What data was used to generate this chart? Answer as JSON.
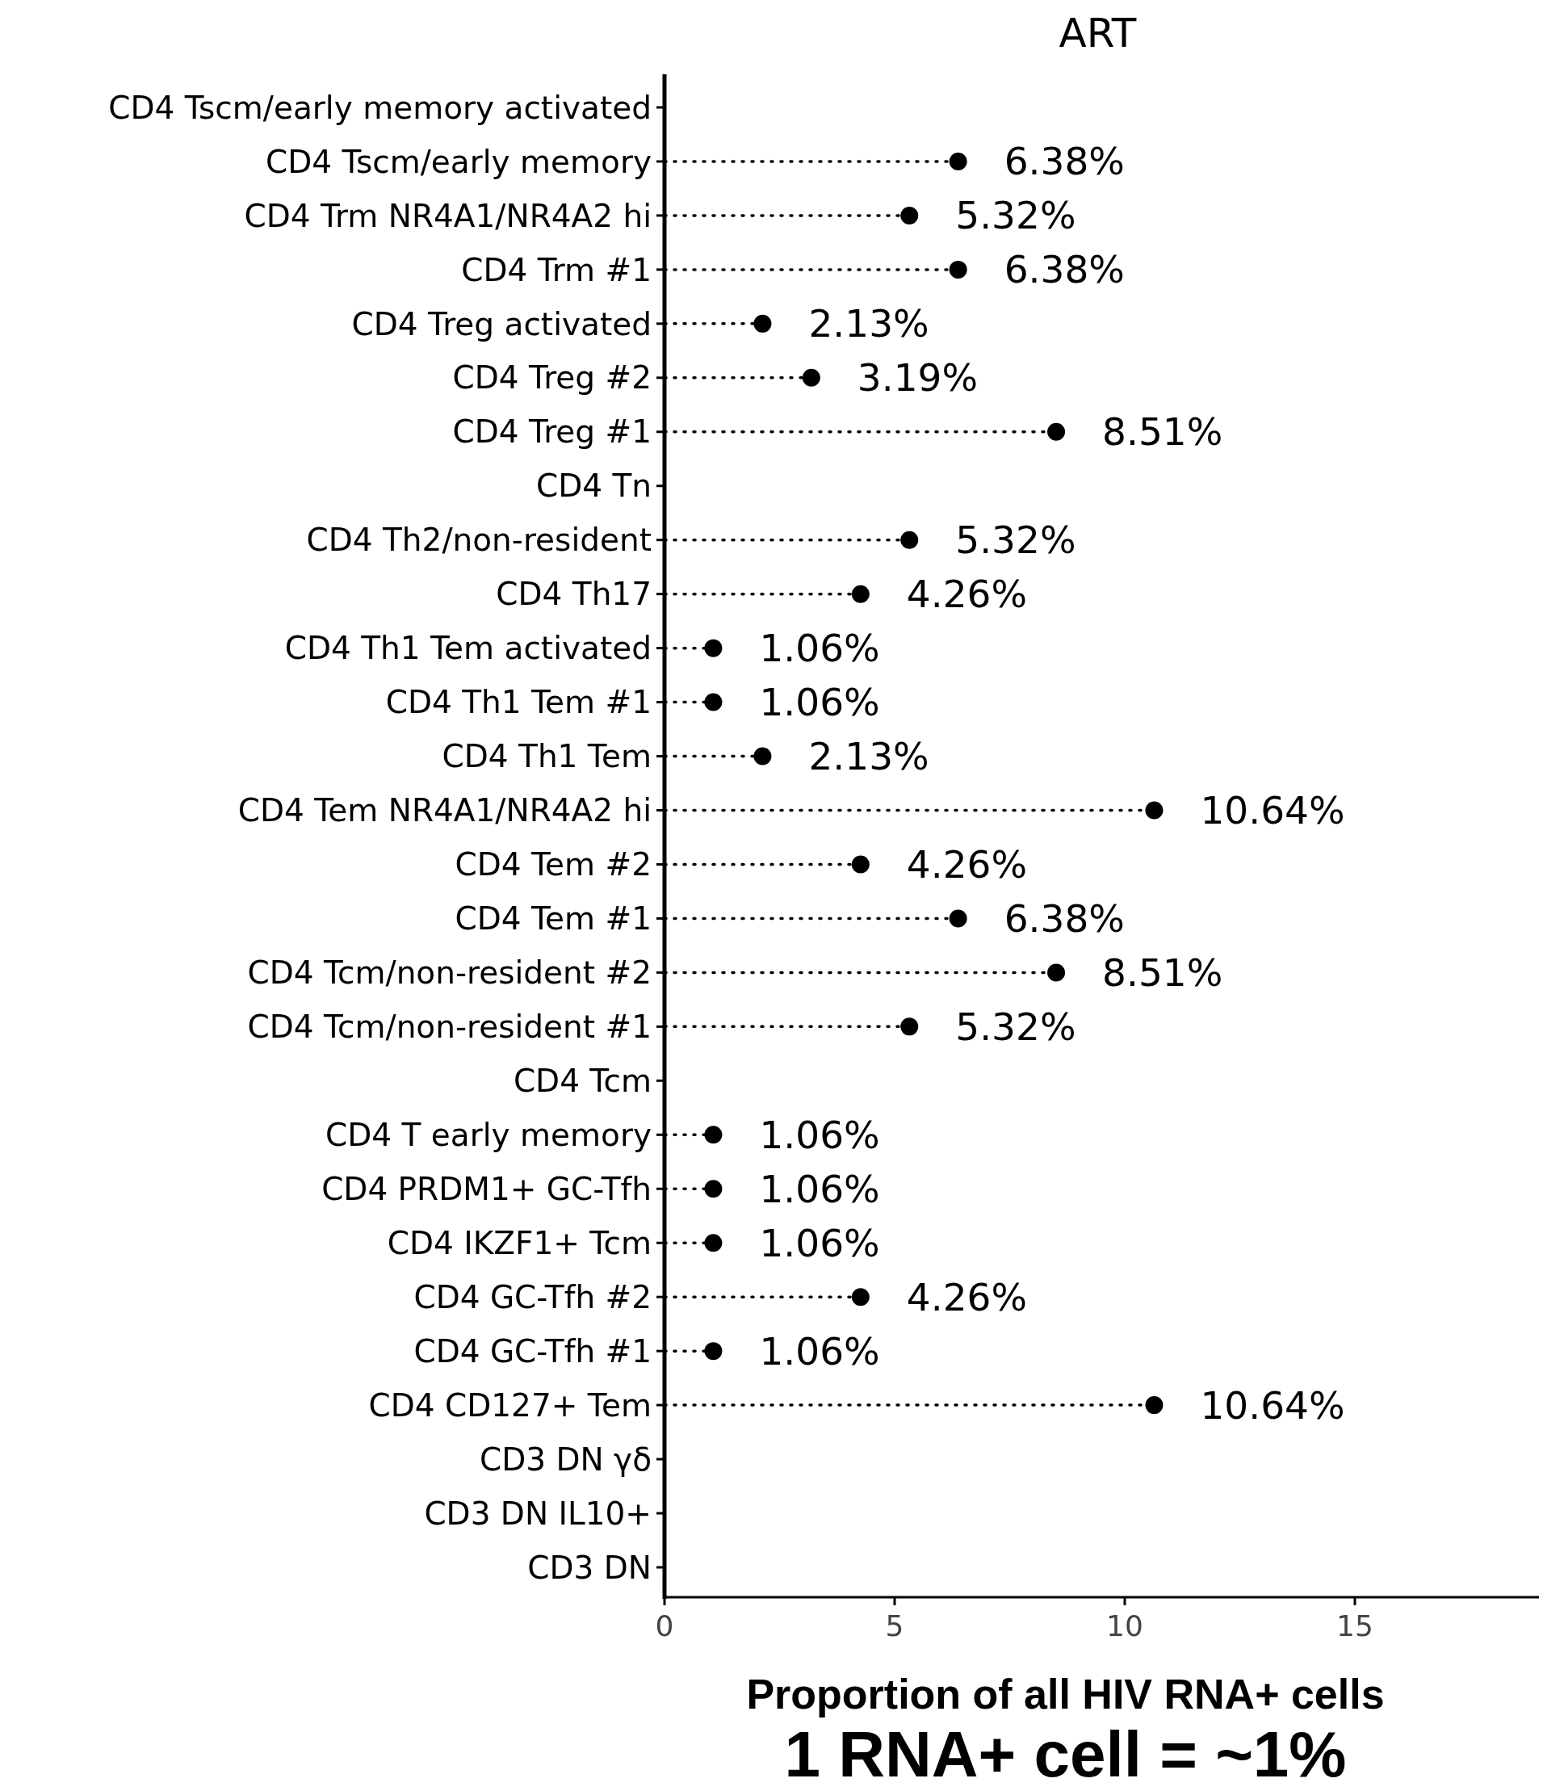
{
  "chart_data": {
    "type": "lollipop",
    "title": "ART",
    "orientation": "horizontal",
    "categories": [
      "CD4 Tscm/early memory activated",
      "CD4 Tscm/early memory",
      "CD4 Trm NR4A1/NR4A2 hi",
      "CD4 Trm #1",
      "CD4 Treg activated",
      "CD4 Treg #2",
      "CD4 Treg #1",
      "CD4 Tn",
      "CD4 Th2/non-resident",
      "CD4 Th17",
      "CD4 Th1 Tem activated",
      "CD4 Th1 Tem #1",
      "CD4 Th1 Tem",
      "CD4 Tem NR4A1/NR4A2 hi",
      "CD4 Tem #2",
      "CD4 Tem #1",
      "CD4 Tcm/non-resident #2",
      "CD4 Tcm/non-resident #1",
      "CD4 Tcm",
      "CD4 T early memory",
      "CD4 PRDM1+ GC-Tfh",
      "CD4 IKZF1+ Tcm",
      "CD4 GC-Tfh #2",
      "CD4 GC-Tfh #1",
      "CD4 CD127+ Tem",
      "CD3 DN γδ",
      "CD3 DN IL10+",
      "CD3 DN"
    ],
    "values": [
      null,
      6.38,
      5.32,
      6.38,
      2.13,
      3.19,
      8.51,
      null,
      5.32,
      4.26,
      1.06,
      1.06,
      2.13,
      10.64,
      4.26,
      6.38,
      8.51,
      5.32,
      null,
      1.06,
      1.06,
      1.06,
      4.26,
      1.06,
      10.64,
      null,
      null,
      null
    ],
    "value_labels": [
      null,
      "6.38%",
      "5.32%",
      "6.38%",
      "2.13%",
      "3.19%",
      "8.51%",
      null,
      "5.32%",
      "4.26%",
      "1.06%",
      "1.06%",
      "2.13%",
      "10.64%",
      "4.26%",
      "6.38%",
      "8.51%",
      "5.32%",
      null,
      "1.06%",
      "1.06%",
      "1.06%",
      "4.26%",
      "1.06%",
      "10.64%",
      null,
      null,
      null
    ],
    "color": "#000000",
    "marker": "circle",
    "line_style": "dotted",
    "xlim": [
      0,
      19
    ],
    "xticks": [
      0,
      5,
      10,
      15
    ],
    "xlabel": "Proportion of all HIV RNA+ cells",
    "annotations": [
      "1 RNA+ cell = ~1%"
    ]
  }
}
